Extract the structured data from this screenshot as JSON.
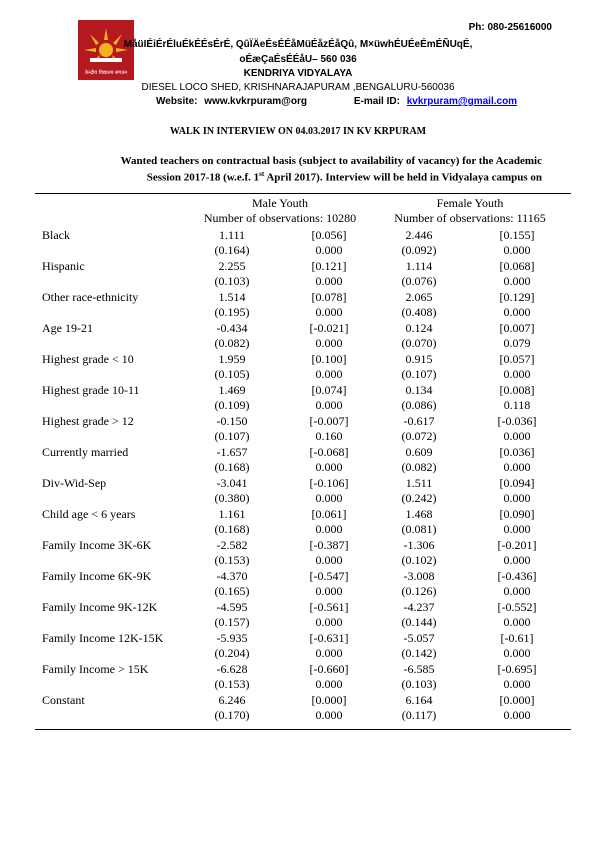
{
  "header": {
    "phone": "Ph: 080-25616000",
    "hindi_line1": "MåüIÉiÉrÉluÉkÉÉsÉrÉ, QûÏÄeÉsÉÉåMüÉåzÉåQû, M×üwhÉUÉeÉmÉÑUqÉ,",
    "hindi_line2": "oÉæÇaÉsÉÉåU– 560 036",
    "school": "KENDRIYA VIDYALAYA",
    "address": "DIESEL LOCO SHED, KRISHNARAJAPURAM ,BENGALURU-560036",
    "website_label": "Website:",
    "website": "www.kvkrpuram@org",
    "email_label": "E-mail ID:",
    "email": "kvkrpuram@gmail.com",
    "logo_text": "केन्द्रीय विद्यालय संगठन",
    "colors": {
      "logo_red": "#b3191f",
      "logo_gold": "#f3b320",
      "link": "#0000ee"
    }
  },
  "notice": {
    "title": "WALK IN INTERVIEW ON 04.03.2017 IN KV KRPURAM",
    "para_line1": "Wanted teachers on contractual basis (subject to availability of vacancy) for the Academic",
    "para_line2_a": "Session 2017-18 (w.e.f. 1",
    "para_line2_sup": "st",
    "para_line2_b": " April 2017).  Interview will be held in Vidyalaya campus on"
  },
  "table": {
    "groups": [
      {
        "name": "Male Youth",
        "obs": "Number of observations: 10280"
      },
      {
        "name": "Female Youth",
        "obs": "Number of observations: 11165"
      }
    ],
    "rows": [
      {
        "label": "Black",
        "m_coef": "1.111",
        "m_me": "[0.056]",
        "m_se": "(0.164)",
        "m_p": "0.000",
        "f_coef": "2.446",
        "f_me": "[0.155]",
        "f_se": "(0.092)",
        "f_p": "0.000"
      },
      {
        "label": "Hispanic",
        "m_coef": "2.255",
        "m_me": "[0.121]",
        "m_se": "(0.103)",
        "m_p": "0.000",
        "f_coef": "1.114",
        "f_me": "[0.068]",
        "f_se": "(0.076)",
        "f_p": "0.000"
      },
      {
        "label": "Other race-ethnicity",
        "m_coef": "1.514",
        "m_me": "[0.078]",
        "m_se": "(0.195)",
        "m_p": "0.000",
        "f_coef": "2.065",
        "f_me": "[0.129]",
        "f_se": "(0.408)",
        "f_p": "0.000"
      },
      {
        "label": "Age 19-21",
        "m_coef": "-0.434",
        "m_me": "[-0.021]",
        "m_se": "(0.082)",
        "m_p": "0.000",
        "f_coef": "0.124",
        "f_me": "[0.007]",
        "f_se": "(0.070)",
        "f_p": "0.079"
      },
      {
        "label": "Highest grade < 10",
        "m_coef": "1.959",
        "m_me": "[0.100]",
        "m_se": "(0.105)",
        "m_p": "0.000",
        "f_coef": "0.915",
        "f_me": "[0.057]",
        "f_se": "(0.107)",
        "f_p": "0.000"
      },
      {
        "label": "Highest grade 10-11",
        "m_coef": "1.469",
        "m_me": "[0.074]",
        "m_se": "(0.109)",
        "m_p": "0.000",
        "f_coef": "0.134",
        "f_me": "[0.008]",
        "f_se": "(0.086)",
        "f_p": "0.118"
      },
      {
        "label": "Highest grade > 12",
        "m_coef": "-0.150",
        "m_me": "[-0.007]",
        "m_se": "(0.107)",
        "m_p": "0.160",
        "f_coef": "-0.617",
        "f_me": "[-0.036]",
        "f_se": "(0.072)",
        "f_p": "0.000"
      },
      {
        "label": "Currently married",
        "m_coef": "-1.657",
        "m_me": "[-0.068]",
        "m_se": "(0.168)",
        "m_p": "0.000",
        "f_coef": "0.609",
        "f_me": "[0.036]",
        "f_se": "(0.082)",
        "f_p": "0.000"
      },
      {
        "label": "Div-Wid-Sep",
        "m_coef": "-3.041",
        "m_me": "[-0.106]",
        "m_se": "(0.380)",
        "m_p": "0.000",
        "f_coef": "1.511",
        "f_me": "[0.094]",
        "f_se": "(0.242)",
        "f_p": "0.000"
      },
      {
        "label": "Child age < 6 years",
        "m_coef": "1.161",
        "m_me": "[0.061]",
        "m_se": "(0.168)",
        "m_p": "0.000",
        "f_coef": "1.468",
        "f_me": "[0.090]",
        "f_se": "(0.081)",
        "f_p": "0.000"
      },
      {
        "label": "Family Income 3K-6K",
        "m_coef": "-2.582",
        "m_me": "[-0.387]",
        "m_se": "(0.153)",
        "m_p": "0.000",
        "f_coef": "-1.306",
        "f_me": "[-0.201]",
        "f_se": "(0.102)",
        "f_p": "0.000"
      },
      {
        "label": "Family Income 6K-9K",
        "m_coef": "-4.370",
        "m_me": "[-0.547]",
        "m_se": "(0.165)",
        "m_p": "0.000",
        "f_coef": "-3.008",
        "f_me": "[-0.436]",
        "f_se": "(0.126)",
        "f_p": "0.000"
      },
      {
        "label": "Family Income 9K-12K",
        "m_coef": "-4.595",
        "m_me": "[-0.561]",
        "m_se": "(0.157)",
        "m_p": "0.000",
        "f_coef": "-4.237",
        "f_me": "[-0.552]",
        "f_se": "(0.144)",
        "f_p": "0.000"
      },
      {
        "label": "Family Income 12K-15K",
        "m_coef": "-5.935",
        "m_me": "[-0.631]",
        "m_se": "(0.204)",
        "m_p": "0.000",
        "f_coef": "-5.057",
        "f_me": "[-0.61]",
        "f_se": "(0.142)",
        "f_p": "0.000"
      },
      {
        "label": "Family Income > 15K",
        "m_coef": "-6.628",
        "m_me": "[-0.660]",
        "m_se": "(0.153)",
        "m_p": "0.000",
        "f_coef": "-6.585",
        "f_me": "[-0.695]",
        "f_se": "(0.103)",
        "f_p": "0.000"
      },
      {
        "label": "Constant",
        "m_coef": "6.246",
        "m_me": "[0.000]",
        "m_se": "(0.170)",
        "m_p": "0.000",
        "f_coef": "6.164",
        "f_me": "[0.000]",
        "f_se": "(0.117)",
        "f_p": "0.000"
      }
    ]
  }
}
